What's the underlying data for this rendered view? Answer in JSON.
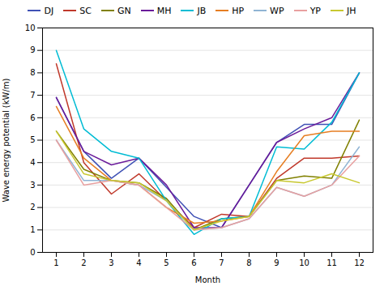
{
  "chart_data": {
    "type": "line",
    "x": [
      1,
      2,
      3,
      4,
      5,
      6,
      7,
      8,
      9,
      10,
      11,
      12
    ],
    "series": [
      {
        "name": "DJ",
        "color": "#3f51b5",
        "values": [
          6.9,
          4.5,
          3.3,
          4.2,
          2.9,
          1.6,
          1.1,
          3.0,
          4.9,
          5.7,
          5.7,
          8.0
        ]
      },
      {
        "name": "SC",
        "color": "#c0392b",
        "values": [
          8.4,
          4.0,
          2.6,
          3.5,
          2.3,
          1.1,
          1.7,
          1.6,
          3.3,
          4.2,
          4.2,
          4.3
        ]
      },
      {
        "name": "GN",
        "color": "#808000",
        "values": [
          5.4,
          3.7,
          3.2,
          3.1,
          2.4,
          1.0,
          1.5,
          1.6,
          3.2,
          3.4,
          3.3,
          5.9
        ]
      },
      {
        "name": "MH",
        "color": "#6a1b9a",
        "values": [
          6.9,
          4.5,
          3.9,
          4.2,
          3.0,
          1.1,
          1.1,
          3.0,
          4.9,
          5.5,
          6.0,
          8.0
        ]
      },
      {
        "name": "JB",
        "color": "#00bcd4",
        "values": [
          9.0,
          5.5,
          4.5,
          4.2,
          2.3,
          0.8,
          1.5,
          1.6,
          4.7,
          4.6,
          5.8,
          8.0
        ]
      },
      {
        "name": "HP",
        "color": "#e67e22",
        "values": [
          6.5,
          4.2,
          3.2,
          3.0,
          2.0,
          1.3,
          1.4,
          1.6,
          3.6,
          5.2,
          5.4,
          5.4
        ]
      },
      {
        "name": "WP",
        "color": "#90b4d4",
        "values": [
          5.0,
          3.2,
          3.2,
          3.0,
          2.3,
          1.0,
          1.1,
          1.5,
          2.9,
          2.5,
          3.0,
          4.7
        ]
      },
      {
        "name": "YP",
        "color": "#e8a0a0",
        "values": [
          5.0,
          3.0,
          3.2,
          3.0,
          2.0,
          1.0,
          1.1,
          1.5,
          2.9,
          2.5,
          3.0,
          4.3
        ]
      },
      {
        "name": "JH",
        "color": "#c8c830",
        "values": [
          5.4,
          3.5,
          3.2,
          3.1,
          2.3,
          1.0,
          1.4,
          1.6,
          3.2,
          3.1,
          3.5,
          3.1
        ]
      }
    ],
    "xlabel": "Month",
    "ylabel": "Wave energy potential (kW/m)",
    "xlim": [
      0.5,
      12.5
    ],
    "ylim": [
      0,
      10
    ],
    "xticks": [
      1,
      2,
      3,
      4,
      5,
      6,
      7,
      8,
      9,
      10,
      11,
      12
    ],
    "yticks": [
      0,
      1,
      2,
      3,
      4,
      5,
      6,
      7,
      8,
      9,
      10
    ],
    "grid": true,
    "legend": "top"
  }
}
